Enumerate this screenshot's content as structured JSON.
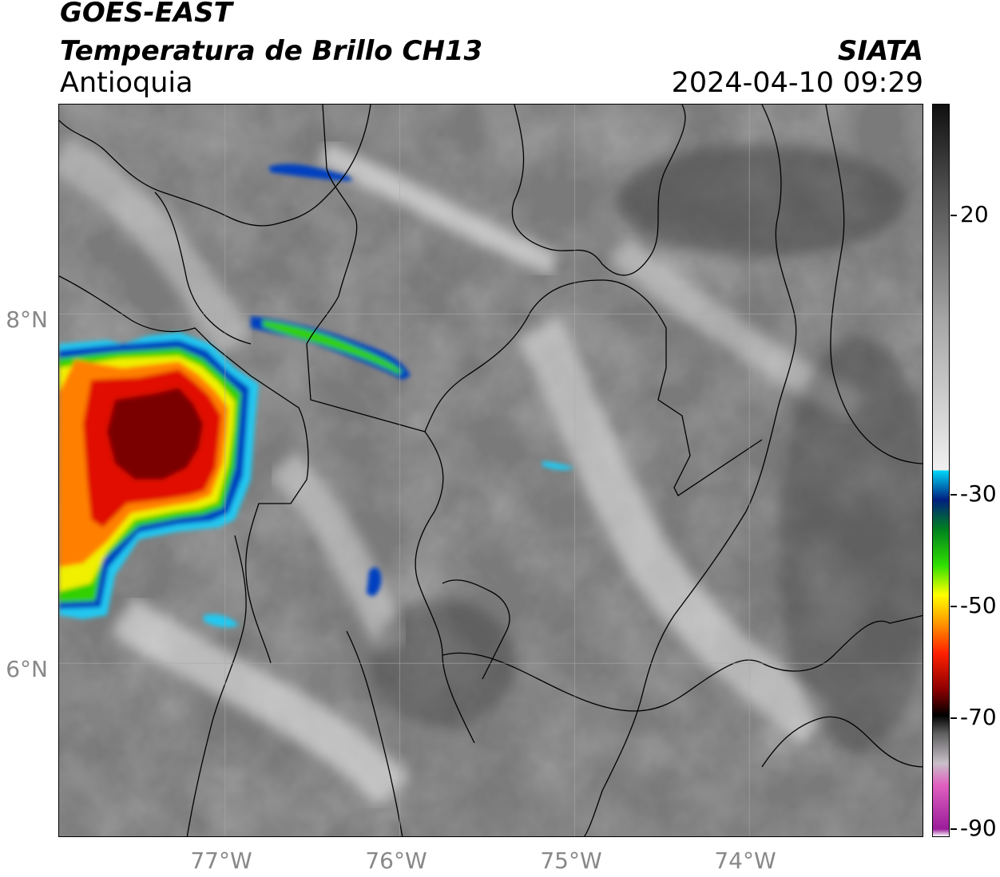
{
  "header": {
    "satellite": "GOES-EAST",
    "product": "Temperatura de Brillo CH13",
    "region": "Antioquia",
    "organization": "SIATA",
    "datetime": "2024-04-10 09:29"
  },
  "map": {
    "lat_labels": [
      "8°N",
      "6°N"
    ],
    "lon_labels": [
      "77°W",
      "76°W",
      "75°W",
      "74°W"
    ],
    "lat_range": [
      5.0,
      9.2
    ],
    "lon_range": [
      -77.95,
      -73.0
    ],
    "gridlines": true,
    "background_color": "#7a7a7a"
  },
  "colorbar": {
    "tick_labels": [
      "20",
      "-30",
      "-50",
      "-70",
      "-90"
    ],
    "range": [
      -90,
      40
    ],
    "gradient": [
      {
        "stop": 0.0,
        "color": "#fcfcfc"
      },
      {
        "stop": 0.01,
        "color": "#9b1c9b"
      },
      {
        "stop": 0.07,
        "color": "#e060c0"
      },
      {
        "stop": 0.1,
        "color": "#c8c0c8"
      },
      {
        "stop": 0.14,
        "color": "#606060"
      },
      {
        "stop": 0.165,
        "color": "#000000"
      },
      {
        "stop": 0.2,
        "color": "#8b0000"
      },
      {
        "stop": 0.25,
        "color": "#ff2000"
      },
      {
        "stop": 0.3,
        "color": "#ffb000"
      },
      {
        "stop": 0.33,
        "color": "#ffff00"
      },
      {
        "stop": 0.37,
        "color": "#30e000"
      },
      {
        "stop": 0.42,
        "color": "#008020"
      },
      {
        "stop": 0.46,
        "color": "#002080"
      },
      {
        "stop": 0.5,
        "color": "#00d8f8"
      },
      {
        "stop": 0.5001,
        "color": "#f0f0f0"
      },
      {
        "stop": 0.7,
        "color": "#a8a8a8"
      },
      {
        "stop": 0.88,
        "color": "#505050"
      },
      {
        "stop": 1.0,
        "color": "#101010"
      }
    ]
  },
  "storm_colors": {
    "core": "#7a0000",
    "red": "#e01000",
    "orange": "#ff8000",
    "yellow": "#f0f000",
    "green": "#30d000",
    "blue": "#0040c0",
    "cyan": "#20c8f0"
  }
}
